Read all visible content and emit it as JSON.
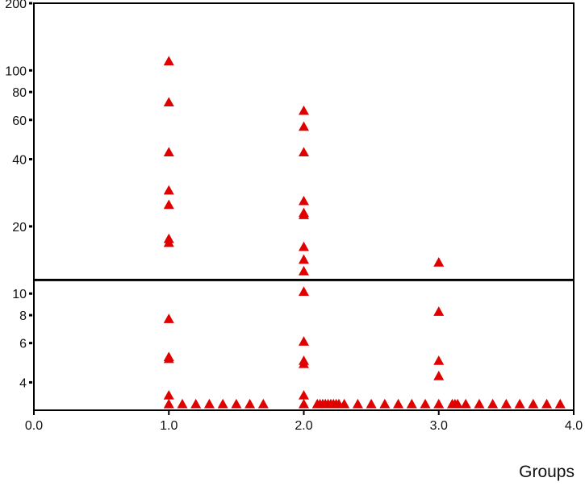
{
  "chart_data": {
    "type": "scatter",
    "x_label": "Groups",
    "log_y": true,
    "marker": "triangle",
    "xlim": [
      0,
      4
    ],
    "ylim": [
      3,
      200
    ],
    "xticks": [
      {
        "value": 0,
        "label": "0.0"
      },
      {
        "value": 1,
        "label": "1.0"
      },
      {
        "value": 2,
        "label": "2.0"
      },
      {
        "value": 3,
        "label": "3.0"
      },
      {
        "value": 4,
        "label": "4.0"
      }
    ],
    "yticks": [
      4,
      6,
      8,
      10,
      20,
      40,
      60,
      80,
      100,
      200
    ],
    "hline": 11.5,
    "hline_color": "#000000",
    "series": [
      {
        "color": "#e00000",
        "x": [
          1,
          1,
          1,
          1,
          1,
          1,
          1,
          1,
          1,
          1,
          1,
          1,
          1.1,
          1.2,
          1.3,
          1.4,
          1.5,
          1.6,
          1.7,
          2,
          2,
          2,
          2,
          2,
          2,
          2,
          2,
          2,
          2,
          2,
          2,
          2,
          2,
          2,
          2.1,
          2.12,
          2.14,
          2.16,
          2.18,
          2.2,
          2.22,
          2.24,
          2.26,
          2.3,
          2.4,
          2.5,
          2.6,
          2.7,
          2.8,
          2.9,
          3,
          3,
          3,
          3,
          3,
          3.1,
          3.12,
          3.14,
          3.2,
          3.3,
          3.4,
          3.5,
          3.6,
          3.7,
          3.8,
          3.9
        ],
        "values": [
          110,
          72,
          43,
          29,
          25,
          17.6,
          16.9,
          7.7,
          5.2,
          5.1,
          3.5,
          3.2,
          3.2,
          3.2,
          3.2,
          3.2,
          3.2,
          3.2,
          3.2,
          66,
          56,
          43,
          26,
          23,
          22.5,
          16.2,
          14.2,
          12.6,
          10.2,
          6.1,
          5.0,
          4.84,
          3.5,
          3.2,
          3.2,
          3.2,
          3.2,
          3.2,
          3.2,
          3.2,
          3.2,
          3.2,
          3.2,
          3.2,
          3.2,
          3.2,
          3.2,
          3.2,
          3.2,
          3.2,
          13.8,
          8.3,
          5.0,
          4.27,
          3.2,
          3.2,
          3.2,
          3.2,
          3.2,
          3.2,
          3.2,
          3.2,
          3.2,
          3.2,
          3.2,
          3.2
        ]
      }
    ]
  }
}
